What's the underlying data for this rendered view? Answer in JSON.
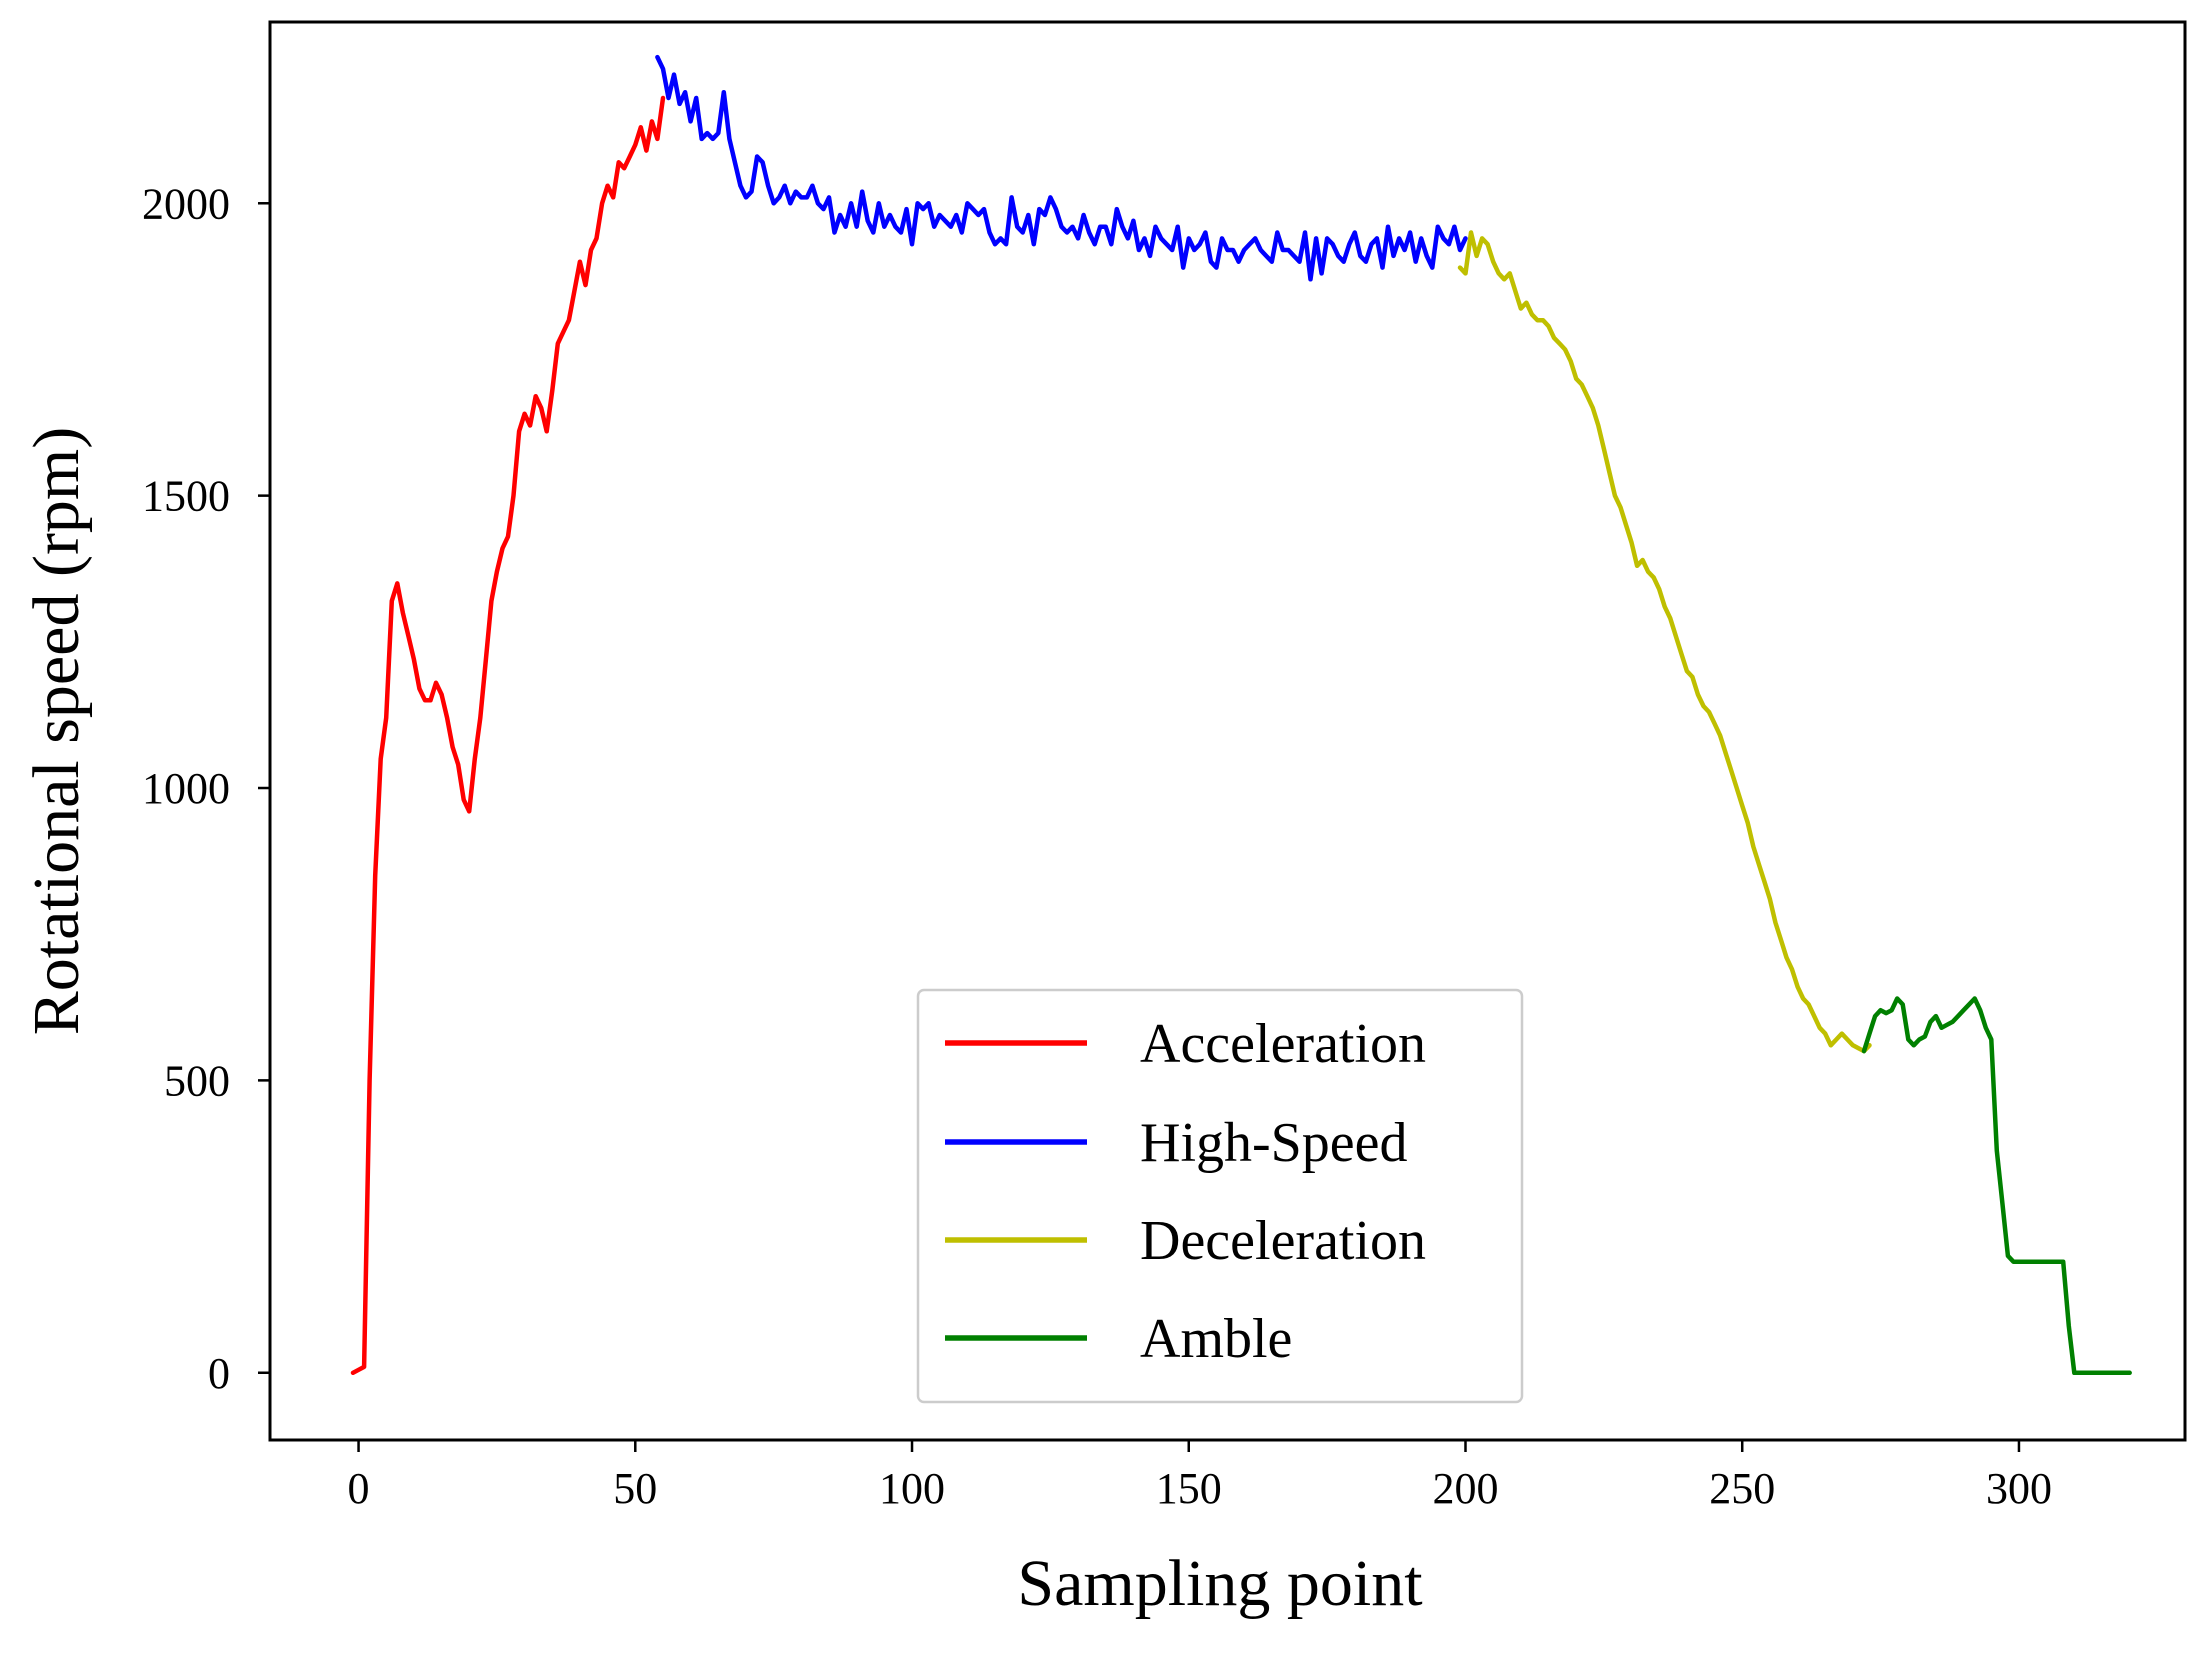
{
  "chart_data": {
    "type": "line",
    "title": "",
    "xlabel": "Sampling point",
    "ylabel": "Rotational speed (rpm)",
    "xlim": [
      -16,
      330
    ],
    "ylim": [
      -115,
      2310
    ],
    "xticks": [
      0,
      50,
      100,
      150,
      200,
      250,
      300
    ],
    "yticks": [
      0,
      500,
      1000,
      1500,
      2000
    ],
    "grid": false,
    "legend_position": "lower-center",
    "series": [
      {
        "name": "Acceleration",
        "color": "#ff0000",
        "x": [
          -1,
          0,
          1,
          2,
          3,
          4,
          5,
          6,
          7,
          8,
          9,
          10,
          11,
          12,
          13,
          14,
          15,
          16,
          17,
          18,
          19,
          20,
          21,
          22,
          23,
          24,
          25,
          26,
          27,
          28,
          29,
          30,
          31,
          32,
          33,
          34,
          35,
          36,
          37,
          38,
          39,
          40,
          41,
          42,
          43,
          44,
          45,
          46,
          47,
          48,
          49,
          50,
          51,
          52,
          53,
          54,
          55
        ],
        "y": [
          0,
          5,
          10,
          500,
          850,
          1050,
          1120,
          1320,
          1350,
          1300,
          1260,
          1220,
          1170,
          1150,
          1150,
          1180,
          1160,
          1120,
          1070,
          1040,
          980,
          960,
          1050,
          1120,
          1220,
          1320,
          1370,
          1410,
          1430,
          1500,
          1610,
          1640,
          1620,
          1670,
          1650,
          1610,
          1680,
          1760,
          1780,
          1800,
          1850,
          1900,
          1860,
          1920,
          1940,
          2000,
          2030,
          2010,
          2070,
          2060,
          2080,
          2100,
          2130,
          2090,
          2140,
          2110,
          2180
        ]
      },
      {
        "name": "High-Speed",
        "color": "#0000ff",
        "x": [
          54,
          55,
          56,
          57,
          58,
          59,
          60,
          61,
          62,
          63,
          64,
          65,
          66,
          67,
          68,
          69,
          70,
          71,
          72,
          73,
          74,
          75,
          76,
          77,
          78,
          79,
          80,
          81,
          82,
          83,
          84,
          85,
          86,
          87,
          88,
          89,
          90,
          91,
          92,
          93,
          94,
          95,
          96,
          97,
          98,
          99,
          100,
          101,
          102,
          103,
          104,
          105,
          106,
          107,
          108,
          109,
          110,
          111,
          112,
          113,
          114,
          115,
          116,
          117,
          118,
          119,
          120,
          121,
          122,
          123,
          124,
          125,
          126,
          127,
          128,
          129,
          130,
          131,
          132,
          133,
          134,
          135,
          136,
          137,
          138,
          139,
          140,
          141,
          142,
          143,
          144,
          145,
          146,
          147,
          148,
          149,
          150,
          151,
          152,
          153,
          154,
          155,
          156,
          157,
          158,
          159,
          160,
          161,
          162,
          163,
          164,
          165,
          166,
          167,
          168,
          169,
          170,
          171,
          172,
          173,
          174,
          175,
          176,
          177,
          178,
          179,
          180,
          181,
          182,
          183,
          184,
          185,
          186,
          187,
          188,
          189,
          190,
          191,
          192,
          193,
          194,
          195,
          196,
          197,
          198,
          199,
          200
        ],
        "y": [
          2250,
          2230,
          2180,
          2220,
          2170,
          2190,
          2140,
          2180,
          2110,
          2120,
          2110,
          2120,
          2190,
          2110,
          2070,
          2030,
          2010,
          2020,
          2080,
          2070,
          2030,
          2000,
          2010,
          2030,
          2000,
          2020,
          2010,
          2010,
          2030,
          2000,
          1990,
          2010,
          1950,
          1980,
          1960,
          2000,
          1960,
          2020,
          1970,
          1950,
          2000,
          1960,
          1980,
          1960,
          1950,
          1990,
          1930,
          2000,
          1990,
          2000,
          1960,
          1980,
          1970,
          1960,
          1980,
          1950,
          2000,
          1990,
          1980,
          1990,
          1950,
          1930,
          1940,
          1930,
          2010,
          1960,
          1950,
          1980,
          1930,
          1990,
          1980,
          2010,
          1990,
          1960,
          1950,
          1960,
          1940,
          1980,
          1950,
          1930,
          1960,
          1960,
          1930,
          1990,
          1960,
          1940,
          1970,
          1920,
          1940,
          1910,
          1960,
          1940,
          1930,
          1920,
          1960,
          1890,
          1940,
          1920,
          1930,
          1950,
          1900,
          1890,
          1940,
          1920,
          1920,
          1900,
          1920,
          1930,
          1940,
          1920,
          1910,
          1900,
          1950,
          1920,
          1920,
          1910,
          1900,
          1950,
          1870,
          1940,
          1880,
          1940,
          1930,
          1910,
          1900,
          1930,
          1950,
          1910,
          1900,
          1930,
          1940,
          1890,
          1960,
          1910,
          1940,
          1920,
          1950,
          1900,
          1940,
          1910,
          1890,
          1960,
          1940,
          1930,
          1960,
          1920,
          1940
        ]
      },
      {
        "name": "Deceleration",
        "color": "#bfbf00",
        "x": [
          199,
          200,
          201,
          202,
          203,
          204,
          205,
          206,
          207,
          208,
          209,
          210,
          211,
          212,
          213,
          214,
          215,
          216,
          217,
          218,
          219,
          220,
          221,
          222,
          223,
          224,
          225,
          226,
          227,
          228,
          229,
          230,
          231,
          232,
          233,
          234,
          235,
          236,
          237,
          238,
          239,
          240,
          241,
          242,
          243,
          244,
          245,
          246,
          247,
          248,
          249,
          250,
          251,
          252,
          253,
          254,
          255,
          256,
          257,
          258,
          259,
          260,
          261,
          262,
          263,
          264,
          265,
          266,
          267,
          268,
          269,
          270,
          271,
          272,
          273
        ],
        "y": [
          1890,
          1880,
          1950,
          1910,
          1940,
          1930,
          1900,
          1880,
          1870,
          1880,
          1850,
          1820,
          1830,
          1810,
          1800,
          1800,
          1790,
          1770,
          1760,
          1750,
          1730,
          1700,
          1690,
          1670,
          1650,
          1620,
          1580,
          1540,
          1500,
          1480,
          1450,
          1420,
          1380,
          1390,
          1370,
          1360,
          1340,
          1310,
          1290,
          1260,
          1230,
          1200,
          1190,
          1160,
          1140,
          1130,
          1110,
          1090,
          1060,
          1030,
          1000,
          970,
          940,
          900,
          870,
          840,
          810,
          770,
          740,
          710,
          690,
          660,
          640,
          630,
          610,
          590,
          580,
          560,
          570,
          580,
          570,
          560,
          555,
          550,
          560
        ]
      },
      {
        "name": "Amble",
        "color": "#008000",
        "x": [
          272,
          273,
          274,
          275,
          276,
          277,
          278,
          279,
          280,
          281,
          282,
          283,
          284,
          285,
          286,
          287,
          288,
          289,
          290,
          291,
          292,
          293,
          294,
          295,
          296,
          297,
          298,
          299,
          300,
          301,
          302,
          303,
          304,
          305,
          306,
          307,
          308,
          309,
          310,
          311,
          312,
          313,
          314,
          315,
          316,
          317,
          318,
          319,
          320
        ],
        "y": [
          550,
          580,
          610,
          620,
          615,
          620,
          640,
          630,
          570,
          560,
          570,
          575,
          600,
          610,
          590,
          595,
          600,
          610,
          620,
          630,
          640,
          620,
          590,
          570,
          380,
          290,
          200,
          190,
          190,
          190,
          190,
          190,
          190,
          190,
          190,
          190,
          190,
          80,
          0,
          0,
          0,
          0,
          0,
          0,
          0,
          0,
          0,
          0,
          0
        ]
      }
    ]
  }
}
